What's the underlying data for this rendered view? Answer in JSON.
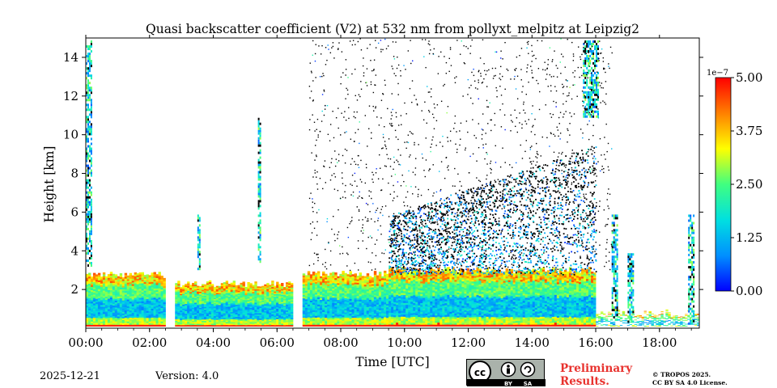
{
  "chart_data": {
    "type": "heatmap",
    "title": "Quasi backscatter coefficient (V2) at 532 nm from pollyxt_melpitz at Leipzig2",
    "xlabel": "Time [UTC]",
    "ylabel": "Height [km]",
    "xlim": [
      0,
      19.25
    ],
    "ylim": [
      0,
      15
    ],
    "x_ticks": [
      {
        "v": 0,
        "label": "00:00"
      },
      {
        "v": 2,
        "label": "02:00"
      },
      {
        "v": 4,
        "label": "04:00"
      },
      {
        "v": 6,
        "label": "06:00"
      },
      {
        "v": 8,
        "label": "08:00"
      },
      {
        "v": 10,
        "label": "10:00"
      },
      {
        "v": 12,
        "label": "12:00"
      },
      {
        "v": 14,
        "label": "14:00"
      },
      {
        "v": 16,
        "label": "16:00"
      },
      {
        "v": 18,
        "label": "18:00"
      }
    ],
    "y_ticks": [
      {
        "v": 2,
        "label": "2"
      },
      {
        "v": 4,
        "label": "4"
      },
      {
        "v": 6,
        "label": "6"
      },
      {
        "v": 8,
        "label": "8"
      },
      {
        "v": 10,
        "label": "10"
      },
      {
        "v": 12,
        "label": "12"
      },
      {
        "v": 14,
        "label": "14"
      }
    ],
    "colorbar": {
      "min": 0.0,
      "max": 5.0,
      "exponent_label": "1e−7",
      "ticks": [
        {
          "v": 0.0,
          "label": "0.00"
        },
        {
          "v": 1.25,
          "label": "1.25"
        },
        {
          "v": 2.5,
          "label": "2.50"
        },
        {
          "v": 3.75,
          "label": "3.75"
        },
        {
          "v": 5.0,
          "label": "5.00"
        }
      ],
      "colors": [
        "#0000ff",
        "#0090ff",
        "#00e0e0",
        "#40ff80",
        "#ffff00",
        "#ff8000",
        "#ff0000"
      ]
    },
    "segments": [
      {
        "t0": 0.0,
        "t1": 2.5,
        "pbl_top": 2.75
      },
      {
        "t0": 2.8,
        "t1": 6.5,
        "pbl_top": 2.3
      },
      {
        "t0": 6.8,
        "t1": 9.5,
        "pbl_top": 2.8
      },
      {
        "t0": 9.5,
        "t1": 16.0,
        "pbl_top": 3.0
      },
      {
        "t0": 16.0,
        "t1": 19.25,
        "pbl_top": 0.8
      }
    ],
    "noise_region": {
      "t0": 7.0,
      "t1": 16.5,
      "h0": 3.0,
      "h1": 15.0
    },
    "dense_region": {
      "t0": 9.5,
      "t1": 16.0,
      "h0": 2.8,
      "h1": 9.5
    },
    "cloud_columns": [
      {
        "t0": 0.0,
        "t1": 0.2,
        "h0": 3.3,
        "h1": 15.0
      },
      {
        "t0": 15.6,
        "t1": 16.1,
        "h0": 11.0,
        "h1": 15.0
      },
      {
        "t0": 3.5,
        "t1": 3.6,
        "h0": 3.0,
        "h1": 6.0
      },
      {
        "t0": 5.4,
        "t1": 5.5,
        "h0": 3.5,
        "h1": 11.0
      },
      {
        "t0": 16.5,
        "t1": 16.7,
        "h0": 0.5,
        "h1": 6.0
      },
      {
        "t0": 17.0,
        "t1": 17.2,
        "h0": 0.4,
        "h1": 4.0
      },
      {
        "t0": 18.9,
        "t1": 19.1,
        "h0": 0.3,
        "h1": 6.0
      }
    ]
  },
  "footer": {
    "date": "2025-12-21",
    "version": "Version: 4.0",
    "license_badge": {
      "by": "BY",
      "sa": "SA"
    },
    "preliminary_line1": "Preliminary",
    "preliminary_line2": "Results.",
    "copyright_line1": "© TROPOS 2025.",
    "copyright_line2": "CC BY SA 4.0 License."
  }
}
